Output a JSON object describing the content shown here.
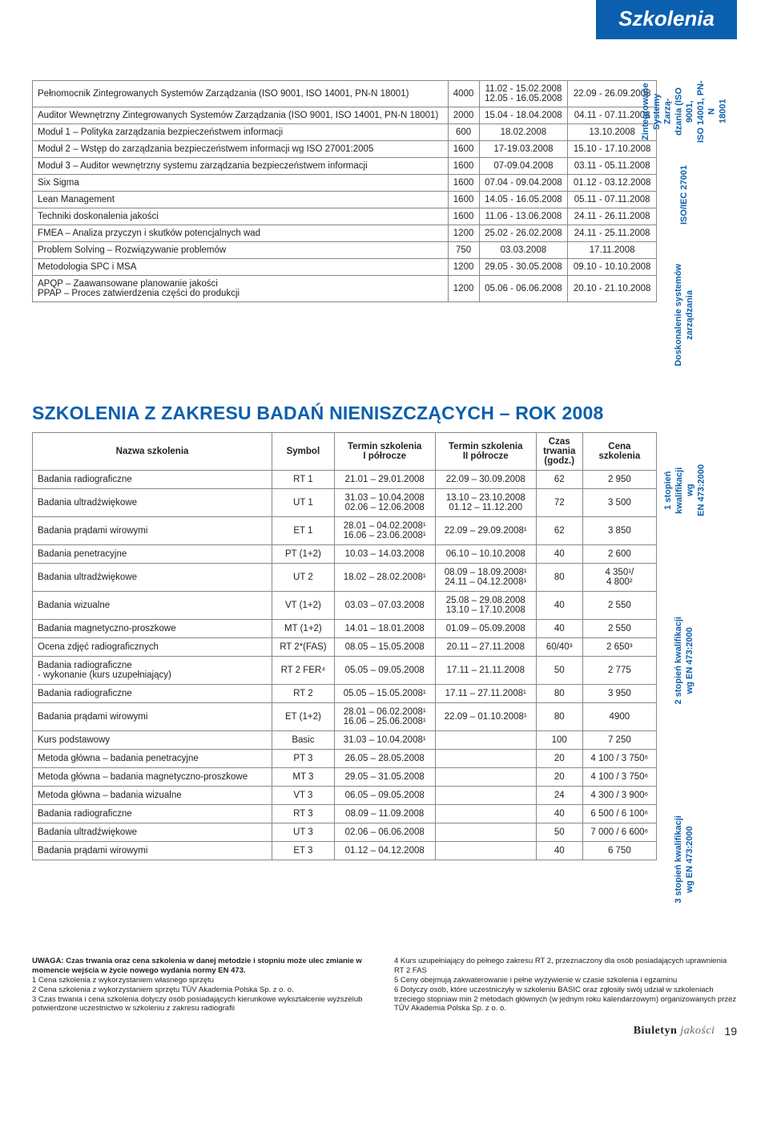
{
  "header": "Szkolenia",
  "t1": {
    "rows1": [
      {
        "name": "Pełnomocnik Zintegrowanych Systemów Zarządzania (ISO 9001, ISO 14001, PN-N 18001)",
        "c2": "4000",
        "c3": "11.02 - 15.02.2008\n12.05 - 16.05.2008",
        "c4": "22.09 - 26.09.2008"
      },
      {
        "name": "Auditor Wewnętrzny Zintegrowanych Systemów Zarządzania (ISO 9001, ISO 14001, PN-N 18001)",
        "c2": "2000",
        "c3": "15.04 - 18.04.2008",
        "c4": "04.11 - 07.11.2008"
      }
    ],
    "side1": "Zintegrowane\nSystemy Zarzą-\ndzania (ISO 9001,\nISO 14001, PN-N\n18001",
    "rows2": [
      {
        "name": "Moduł 1 – Polityka zarządzania bezpieczeństwem informacji",
        "c2": "600",
        "c3": "18.02.2008",
        "c4": "13.10.2008"
      },
      {
        "name": "Moduł 2 – Wstęp do zarządzania bezpieczeństwem informacji wg ISO 27001:2005",
        "c2": "1600",
        "c3": "17-19.03.2008",
        "c4": "15.10 - 17.10.2008"
      },
      {
        "name": "Moduł 3 – Auditor wewnętrzny systemu zarządzania bezpieczeństwem informacji",
        "c2": "1600",
        "c3": "07-09.04.2008",
        "c4": "03.11 - 05.11.2008"
      },
      {
        "name": "Six Sigma",
        "c2": "1600",
        "c3": "07.04 - 09.04.2008",
        "c4": "01.12 - 03.12.2008"
      }
    ],
    "side2": "ISO/IEC 27001",
    "rows3": [
      {
        "name": "Lean Management",
        "c2": "1600",
        "c3": "14.05 - 16.05.2008",
        "c4": "05.11 - 07.11.2008"
      },
      {
        "name": "Techniki doskonalenia jakości",
        "c2": "1600",
        "c3": "11.06 - 13.06.2008",
        "c4": "24.11 - 26.11.2008"
      },
      {
        "name": "FMEA – Analiza przyczyn i skutków potencjalnych wad",
        "c2": "1200",
        "c3": "25.02 - 26.02.2008",
        "c4": "24.11 - 25.11.2008"
      },
      {
        "name": "Problem Solving – Rozwiązywanie problemów",
        "c2": "750",
        "c3": "03.03.2008",
        "c4": "17.11.2008"
      },
      {
        "name": "Metodologia SPC i MSA",
        "c2": "1200",
        "c3": "29.05 - 30.05.2008",
        "c4": "09.10 - 10.10.2008"
      },
      {
        "name": "APQP – Zaawansowane planowanie jakości\nPPAP – Proces zatwierdzenia części do produkcji",
        "c2": "1200",
        "c3": "05.06 - 06.06.2008",
        "c4": "20.10 - 21.10.2008"
      }
    ],
    "side3": "Doskonalenie systemów\nzarządzania"
  },
  "section2_title": "SZKOLENIA Z ZAKRESU BADAŃ NIENISZCZĄCYCH – ROK 2008",
  "t2": {
    "head": [
      "Nazwa szkolenia",
      "Symbol",
      "Termin szkolenia\nI półrocze",
      "Termin szkolenia\nII półrocze",
      "Czas\ntrwania\n(godz.)",
      "Cena\nszkolenia"
    ],
    "g1": [
      {
        "n": "Badania radiograficzne",
        "s": "RT 1",
        "a": "21.01 – 29.01.2008",
        "b": "22.09 – 30.09.2008",
        "h": "62",
        "c": "2 950"
      },
      {
        "n": "Badania ultradźwiękowe",
        "s": "UT 1",
        "a": "31.03 – 10.04.2008\n02.06 – 12.06.2008",
        "b": "13.10 – 23.10.2008\n01.12 – 11.12.200",
        "h": "72",
        "c": "3 500"
      },
      {
        "n": "Badania prądami wirowymi",
        "s": "ET 1",
        "a": "28.01 – 04.02.2008¹\n16.06 – 23.06.2008¹",
        "b": "22.09 – 29.09.2008¹",
        "h": "62",
        "c": "3 850"
      }
    ],
    "side_g1": "1 stopień\nkwalifikacji\nwg\nEN 473:2000",
    "g2": [
      {
        "n": "Badania penetracyjne",
        "s": "PT (1+2)",
        "a": "10.03 – 14.03.2008",
        "b": "06.10 – 10.10.2008",
        "h": "40",
        "c": "2 600"
      },
      {
        "n": "Badania ultradźwiękowe",
        "s": "UT 2",
        "a": "18.02 – 28.02.2008¹",
        "b": "08.09 – 18.09.2008¹\n24.11 – 04.12.2008¹",
        "h": "80",
        "c": "4 350¹/\n4 800²"
      },
      {
        "n": "Badania wizualne",
        "s": "VT (1+2)",
        "a": "03.03 – 07.03.2008",
        "b": "25.08 – 29.08.2008\n13.10 – 17.10.2008",
        "h": "40",
        "c": "2 550"
      },
      {
        "n": "Badania magnetyczno-proszkowe",
        "s": "MT (1+2)",
        "a": "14.01 – 18.01.2008",
        "b": "01.09 – 05.09.2008",
        "h": "40",
        "c": "2 550"
      },
      {
        "n": "Ocena zdjęć radiograficznych",
        "s": "RT 2*(FAS)",
        "a": "08.05 – 15.05.2008",
        "b": "20.11 – 27.11.2008",
        "h": "60/40³",
        "c": "2 650³"
      },
      {
        "n": "Badania radiograficzne\n- wykonanie (kurs uzupełniający)",
        "s": "RT 2 FER⁴",
        "a": "05.05 – 09.05.2008",
        "b": "17.11 – 21.11.2008",
        "h": "50",
        "c": "2 775"
      },
      {
        "n": "Badania radiograficzne",
        "s": "RT 2",
        "a": "05.05 – 15.05.2008¹",
        "b": "17.11 – 27.11.2008¹",
        "h": "80",
        "c": "3 950"
      },
      {
        "n": "Badania prądami wirowymi",
        "s": "ET (1+2)",
        "a": "28.01 – 06.02.2008¹\n16.06 – 25.06.2008¹",
        "b": "22.09 – 01.10.2008¹",
        "h": "80",
        "c": "4900"
      }
    ],
    "side_g2": "2 stopień kwalifikacji\nwg EN 473:2000",
    "g3": [
      {
        "n": "Kurs podstawowy",
        "s": "Basic",
        "a": "31.03 – 10.04.2008¹",
        "b": "",
        "h": "100",
        "c": "7 250"
      },
      {
        "n": "Metoda główna – badania penetracyjne",
        "s": "PT 3",
        "a": "26.05 – 28.05.2008",
        "b": "",
        "h": "20",
        "c": "4 100 / 3 750⁶"
      },
      {
        "n": "Metoda główna – badania magnetyczno-proszkowe",
        "s": "MT 3",
        "a": "29.05 – 31.05.2008",
        "b": "",
        "h": "20",
        "c": "4 100 / 3 750⁶"
      },
      {
        "n": "Metoda główna – badania wizualne",
        "s": "VT 3",
        "a": "06.05 – 09.05.2008",
        "b": "",
        "h": "24",
        "c": "4 300 / 3 900⁶"
      },
      {
        "n": "Badania radiograficzne",
        "s": "RT 3",
        "a": "08.09 – 11.09.2008",
        "b": "",
        "h": "40",
        "c": "6 500 / 6 100⁶"
      },
      {
        "n": "Badania ultradźwiękowe",
        "s": "UT 3",
        "a": "02.06 – 06.06.2008",
        "b": "",
        "h": "50",
        "c": "7 000 / 6 600⁶"
      },
      {
        "n": "Badania prądami wirowymi",
        "s": "ET 3",
        "a": "01.12 – 04.12.2008",
        "b": "",
        "h": "40",
        "c": "6 750"
      }
    ],
    "side_g3": "3 stopień kwalifikacji\nwg EN 473:2000"
  },
  "footnotes": {
    "left": "UWAGA: Czas trwania oraz cena szkolenia w danej metodzie i stopniu może ulec zmianie w momencie wejścia w życie nowego wydania normy EN 473.\n1 Cena szkolenia z wykorzystaniem własnego sprzętu\n2 Cena szkolenia z wykorzystaniem sprzętu TÜV Akademia Polska Sp. z o. o.\n3 Czas trwania i cena szkolenia dotyczy osób posiadających kierunkowe wykształcenie wyższelub potwierdzone uczestnictwo w szkoleniu z zakresu radiografii",
    "right": "4 Kurs uzupełniający do pełnego zakresu RT 2, przeznaczony dla osób posiadających uprawnienia RT 2 FAS\n5 Ceny obejmują zakwaterowanie i pełne wyżywienie w czasie szkolenia i egzaminu\n6 Dotyczy osób, które uczestniczyły w szkoleniu BASIC oraz zgłosiły swój udział w szkoleniach trzeciego stopniaw min 2 metodach głównych (w jednym roku kalendarzowym) organizowanych przez TÜV Akademia Polska Sp. z o. o."
  },
  "page_logo": "Biuletyn",
  "page_logo_sub": "jakości",
  "page_num": "19"
}
